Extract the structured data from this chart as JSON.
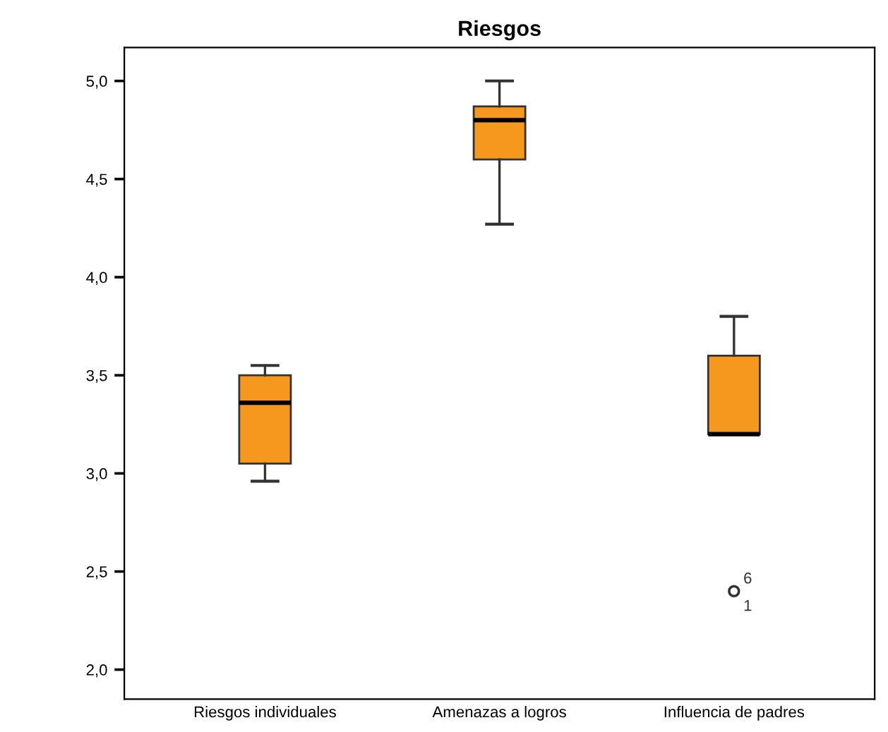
{
  "chart_data": {
    "type": "box",
    "title": "Riesgos",
    "categories": [
      "Riesgos individuales",
      "Amenazas a logros",
      "Influencia de padres"
    ],
    "boxes": [
      {
        "low": 2.96,
        "q1": 3.05,
        "median": 3.36,
        "q3": 3.5,
        "high": 3.55
      },
      {
        "low": 4.27,
        "q1": 4.6,
        "median": 4.8,
        "q3": 4.87,
        "high": 5.0
      },
      {
        "low": 3.2,
        "q1": 3.2,
        "median": 3.2,
        "q3": 3.6,
        "high": 3.8,
        "outliers": [
          2.4
        ]
      }
    ],
    "color": "#f7981e",
    "ylim": [
      1.85,
      5.17
    ],
    "yticks": [
      {
        "value": 2.0,
        "label": "2,0"
      },
      {
        "value": 2.5,
        "label": "2,5"
      },
      {
        "value": 3.0,
        "label": "3,0"
      },
      {
        "value": 3.5,
        "label": "3,5"
      },
      {
        "value": 4.0,
        "label": "4,0"
      },
      {
        "value": 4.5,
        "label": "4,5"
      },
      {
        "value": 5.0,
        "label": "5,0"
      }
    ],
    "grid": false,
    "annotations": [
      "6",
      "1"
    ]
  }
}
